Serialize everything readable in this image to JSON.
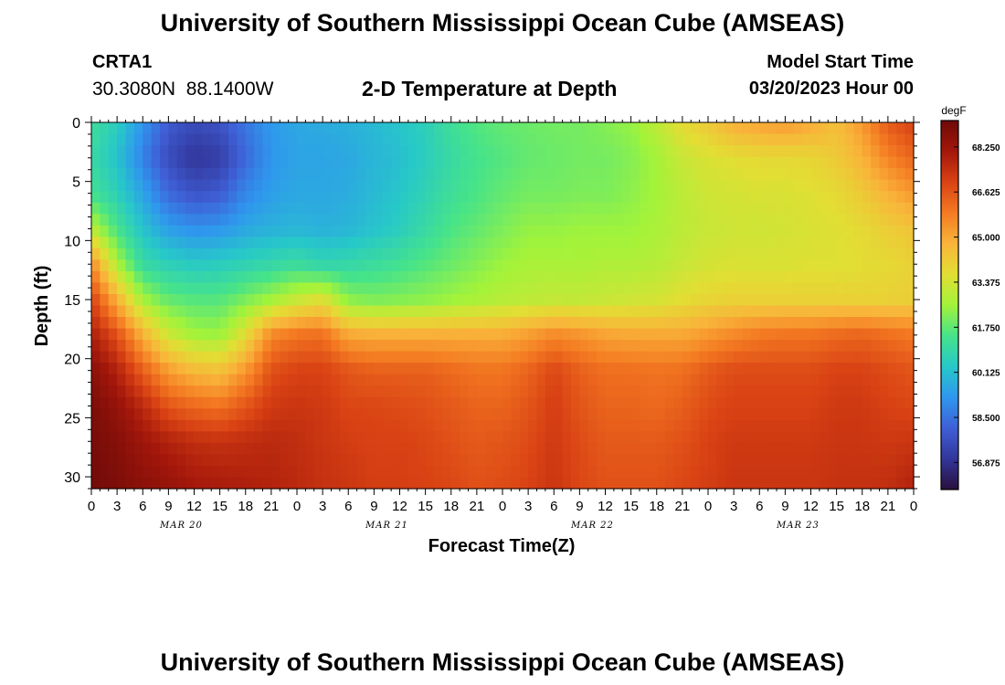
{
  "page": {
    "title_top": "University of Southern Mississippi Ocean Cube (AMSEAS)",
    "title_bottom": "University of Southern Mississippi Ocean Cube (AMSEAS)",
    "station_id": "CRTA1",
    "station_coords": "30.3080N  88.1400W",
    "subtitle": "2-D Temperature at Depth",
    "model_start_label": "Model Start Time",
    "model_start_value": "03/20/2023 Hour 00"
  },
  "chart_data": {
    "type": "heatmap",
    "title": "2-D Temperature at Depth",
    "xlabel": "Forecast Time(Z)",
    "ylabel": "Depth (ft)",
    "units": "degF",
    "x_hours_range": [
      0,
      96
    ],
    "y_depth_range_ft": [
      0,
      31
    ],
    "y_inverted": true,
    "y_ticks": [
      "0",
      "5",
      "10",
      "15",
      "20",
      "25",
      "30"
    ],
    "x_tick_labels": [
      "0",
      "3",
      "6",
      "9",
      "12",
      "15",
      "18",
      "21",
      "0",
      "3",
      "6",
      "9",
      "12",
      "15",
      "18",
      "21",
      "0",
      "3",
      "6",
      "9",
      "12",
      "15",
      "18",
      "21",
      "0",
      "3",
      "6",
      "9",
      "12",
      "15",
      "18",
      "21",
      "0"
    ],
    "x_day_labels": [
      "MAR 20",
      "MAR 21",
      "MAR 22",
      "MAR 23"
    ],
    "colorbar": {
      "label": "degF",
      "range": [
        55.9,
        69.2
      ],
      "ticks": [
        "68.250",
        "66.625",
        "65.000",
        "63.375",
        "61.750",
        "60.125",
        "58.500",
        "56.875"
      ],
      "colors": [
        "#2a0f3c",
        "#32369a",
        "#3f5fd6",
        "#2f97ee",
        "#27c8c8",
        "#46e38a",
        "#a2f33a",
        "#e2de34",
        "#f9b43a",
        "#f47a22",
        "#d94214",
        "#a3170b",
        "#6e0a08"
      ]
    },
    "grid_depths_ft": [
      0,
      3,
      6,
      9,
      12,
      15,
      18,
      21,
      24,
      27,
      31
    ],
    "grid_times_h": [
      0,
      3,
      6,
      9,
      12,
      15,
      18,
      21,
      24,
      27,
      30,
      33,
      36,
      39,
      42,
      45,
      48,
      51,
      54,
      57,
      60,
      63,
      66,
      69,
      72,
      75,
      78,
      81,
      84,
      87,
      90,
      93,
      96
    ],
    "temperature_degF": [
      [
        61.2,
        60.5,
        59.2,
        58.0,
        57.6,
        57.8,
        58.6,
        59.3,
        59.6,
        59.7,
        59.8,
        60.0,
        60.3,
        60.6,
        61.2,
        61.6,
        61.8,
        61.9,
        62.0,
        62.0,
        62.2,
        62.4,
        63.0,
        63.8,
        64.2,
        64.9,
        65.1,
        65.3,
        65.0,
        64.5,
        65.3,
        66.5,
        67.0
      ],
      [
        61.0,
        60.2,
        58.8,
        57.6,
        57.0,
        57.2,
        58.3,
        59.2,
        59.5,
        59.5,
        59.6,
        59.9,
        60.1,
        60.5,
        61.0,
        61.4,
        61.6,
        61.8,
        61.9,
        62.0,
        62.0,
        62.2,
        62.6,
        63.2,
        63.5,
        63.7,
        63.8,
        63.8,
        63.9,
        64.2,
        64.8,
        65.7,
        66.3
      ],
      [
        61.3,
        60.6,
        59.5,
        58.3,
        57.8,
        58.0,
        58.9,
        59.4,
        59.6,
        59.6,
        59.7,
        60.0,
        60.3,
        60.7,
        61.2,
        61.5,
        61.8,
        62.0,
        62.0,
        62.1,
        62.1,
        62.3,
        62.6,
        63.0,
        63.3,
        63.4,
        63.5,
        63.5,
        63.6,
        63.8,
        64.2,
        64.8,
        65.3
      ],
      [
        63.0,
        61.4,
        60.2,
        59.4,
        59.1,
        59.2,
        59.6,
        59.8,
        59.9,
        59.8,
        59.9,
        60.2,
        60.5,
        61.0,
        61.5,
        61.8,
        62.1,
        62.4,
        62.4,
        62.5,
        62.5,
        62.5,
        62.7,
        63.0,
        63.2,
        63.3,
        63.3,
        63.4,
        63.5,
        63.6,
        63.8,
        64.1,
        64.4
      ],
      [
        65.6,
        62.7,
        61.0,
        60.6,
        60.4,
        60.5,
        60.7,
        60.9,
        61.1,
        60.8,
        60.9,
        61.1,
        61.3,
        61.6,
        61.9,
        62.2,
        62.5,
        62.7,
        62.7,
        62.7,
        62.8,
        62.8,
        62.9,
        63.2,
        63.4,
        63.5,
        63.5,
        63.5,
        63.6,
        63.6,
        63.7,
        63.8,
        64.0
      ],
      [
        67.0,
        64.8,
        62.6,
        61.8,
        61.6,
        61.6,
        62.1,
        62.6,
        63.2,
        63.6,
        62.3,
        62.1,
        62.2,
        62.3,
        62.5,
        62.7,
        62.9,
        63.0,
        63.1,
        63.1,
        63.2,
        63.3,
        63.4,
        63.7,
        63.9,
        64.0,
        64.0,
        64.0,
        64.0,
        64.0,
        64.0,
        64.0,
        64.1
      ],
      [
        67.9,
        66.7,
        64.8,
        63.3,
        62.6,
        62.5,
        63.7,
        65.6,
        66.0,
        66.1,
        65.0,
        64.9,
        64.9,
        64.9,
        64.9,
        64.9,
        64.9,
        65.2,
        65.6,
        65.4,
        65.1,
        65.0,
        65.0,
        65.0,
        65.3,
        65.6,
        65.9,
        66.0,
        66.0,
        66.2,
        66.3,
        66.1,
        65.9
      ],
      [
        68.6,
        67.8,
        66.4,
        65.2,
        64.6,
        64.4,
        65.3,
        66.7,
        67.0,
        67.0,
        66.6,
        66.4,
        66.4,
        66.4,
        66.2,
        66.0,
        66.0,
        66.3,
        66.9,
        66.4,
        66.1,
        66.1,
        66.0,
        66.1,
        66.5,
        66.8,
        66.8,
        66.8,
        66.8,
        67.0,
        67.0,
        66.8,
        66.6
      ],
      [
        68.9,
        68.4,
        67.6,
        66.6,
        66.2,
        66.0,
        66.6,
        67.2,
        67.3,
        67.2,
        66.9,
        66.9,
        66.8,
        66.7,
        66.5,
        66.3,
        66.3,
        66.6,
        67.1,
        66.6,
        66.3,
        66.3,
        66.2,
        66.4,
        66.8,
        67.0,
        67.0,
        67.0,
        67.0,
        67.2,
        67.2,
        67.0,
        66.9
      ],
      [
        69.0,
        68.7,
        68.2,
        67.8,
        67.5,
        67.4,
        67.5,
        67.6,
        67.5,
        67.3,
        67.1,
        67.0,
        67.0,
        66.9,
        66.7,
        66.5,
        66.6,
        66.8,
        67.2,
        66.8,
        66.5,
        66.5,
        66.5,
        66.7,
        67.0,
        67.2,
        67.2,
        67.2,
        67.2,
        67.3,
        67.3,
        67.2,
        67.3
      ],
      [
        69.1,
        68.9,
        68.6,
        68.4,
        68.1,
        68.0,
        67.9,
        67.8,
        67.6,
        67.4,
        67.3,
        67.1,
        67.1,
        67.0,
        66.9,
        66.7,
        66.8,
        67.0,
        67.3,
        66.9,
        66.7,
        66.7,
        66.7,
        66.9,
        67.1,
        67.3,
        67.3,
        67.3,
        67.3,
        67.4,
        67.4,
        67.5,
        67.8
      ]
    ]
  }
}
